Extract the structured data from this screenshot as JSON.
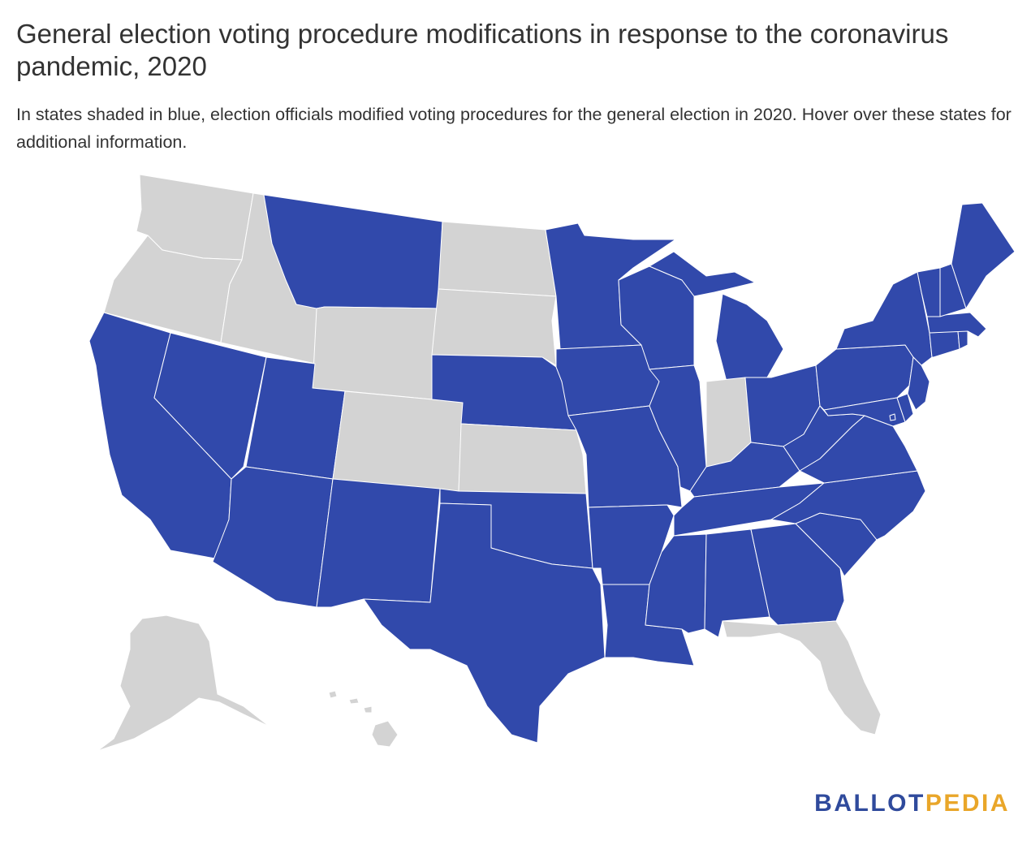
{
  "title": "General election voting procedure modifications in response to the coronavirus pandemic, 2020",
  "subtitle": "In states shaded in blue, election officials modified voting procedures for the general election in 2020. Hover over these states for additional information.",
  "colors": {
    "modified": "#3149ab",
    "not_modified": "#d3d3d3",
    "border": "#ffffff",
    "logo_ballot": "#2f4a9c",
    "logo_pedia": "#e9a629"
  },
  "logo": {
    "part1": "BALLOT",
    "part2": "PEDIA"
  },
  "states": {
    "modified": [
      "CA",
      "NV",
      "UT",
      "AZ",
      "NM",
      "TX",
      "OK",
      "NE",
      "MT",
      "MN",
      "IA",
      "MO",
      "AR",
      "LA",
      "WI",
      "IL",
      "MI",
      "OH",
      "KY",
      "TN",
      "MS",
      "AL",
      "GA",
      "SC",
      "NC",
      "VA",
      "WV",
      "PA",
      "NY",
      "NJ",
      "DE",
      "MD",
      "DC",
      "CT",
      "RI",
      "MA",
      "VT",
      "NH",
      "ME"
    ],
    "not_modified": [
      "WA",
      "OR",
      "ID",
      "WY",
      "ND",
      "SD",
      "CO",
      "KS",
      "IN",
      "FL",
      "AK",
      "HI"
    ]
  }
}
